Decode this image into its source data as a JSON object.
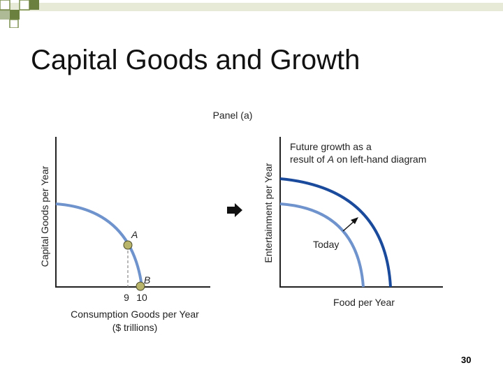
{
  "slide": {
    "title": "Capital Goods and Growth",
    "slide_number": "30"
  },
  "figure": {
    "panel_label": "Panel (a)",
    "left_diagram": {
      "y_axis_label": "Capital Goods per Year",
      "x_axis_label_line1": "Consumption Goods per Year",
      "x_axis_label_line2": "($ trillions)",
      "tick_9": "9",
      "tick_10": "10",
      "point_a_label": "A",
      "point_b_label": "B"
    },
    "right_diagram": {
      "y_axis_label": "Entertainment per Year",
      "x_axis_label": "Food per Year",
      "annotation_line1": "Future growth as a",
      "annotation_line2_prefix": "result of ",
      "annotation_line2_italic": "A",
      "annotation_line2_suffix": " on left-hand diagram",
      "today_label": "Today"
    },
    "colors": {
      "today_curve": "#6f93cc",
      "future_curve": "#1a4a9c",
      "axis": "#222222",
      "point_fill": "#b8b46a",
      "band_green": "#6b7f3f"
    }
  }
}
